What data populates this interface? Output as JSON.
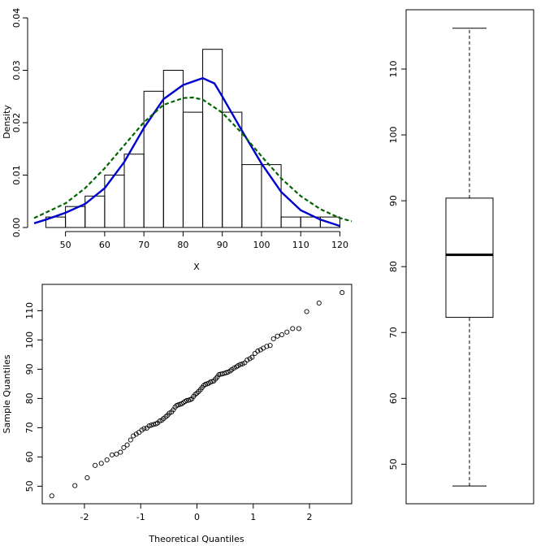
{
  "chart_data": [
    {
      "type": "histogram",
      "xlabel": "X",
      "ylabel": "Density",
      "xlim": [
        42,
        123
      ],
      "ylim": [
        0,
        0.04
      ],
      "xticks": [
        50,
        60,
        70,
        80,
        90,
        100,
        110,
        120
      ],
      "yticks": [
        0.0,
        0.01,
        0.02,
        0.03,
        0.04
      ],
      "xtick_labels": [
        "50",
        "60",
        "70",
        "80",
        "90",
        "100",
        "110",
        "120"
      ],
      "ytick_labels": [
        "0.00",
        "0.01",
        "0.02",
        "0.03",
        "0.04"
      ],
      "bins": [
        {
          "from": 45,
          "to": 50,
          "density": 0.002
        },
        {
          "from": 50,
          "to": 55,
          "density": 0.004
        },
        {
          "from": 55,
          "to": 60,
          "density": 0.006
        },
        {
          "from": 60,
          "to": 65,
          "density": 0.01
        },
        {
          "from": 65,
          "to": 70,
          "density": 0.014
        },
        {
          "from": 70,
          "to": 75,
          "density": 0.026
        },
        {
          "from": 75,
          "to": 80,
          "density": 0.03
        },
        {
          "from": 80,
          "to": 85,
          "density": 0.022
        },
        {
          "from": 85,
          "to": 90,
          "density": 0.034
        },
        {
          "from": 90,
          "to": 95,
          "density": 0.022
        },
        {
          "from": 95,
          "to": 100,
          "density": 0.012
        },
        {
          "from": 100,
          "to": 105,
          "density": 0.012
        },
        {
          "from": 105,
          "to": 110,
          "density": 0.002
        },
        {
          "from": 110,
          "to": 115,
          "density": 0.002
        },
        {
          "from": 115,
          "to": 120,
          "density": 0.002
        }
      ],
      "curves": [
        {
          "name": "kernel-density",
          "color": "#0000cc",
          "style": "solid",
          "points": [
            [
              42,
              0.0008
            ],
            [
              45,
              0.0015
            ],
            [
              50,
              0.0028
            ],
            [
              55,
              0.0045
            ],
            [
              60,
              0.0075
            ],
            [
              65,
              0.0125
            ],
            [
              70,
              0.019
            ],
            [
              75,
              0.0245
            ],
            [
              80,
              0.0272
            ],
            [
              85,
              0.0285
            ],
            [
              88,
              0.0275
            ],
            [
              90,
              0.025
            ],
            [
              95,
              0.0185
            ],
            [
              100,
              0.0122
            ],
            [
              105,
              0.0068
            ],
            [
              110,
              0.0033
            ],
            [
              115,
              0.0015
            ],
            [
              120,
              0.0003
            ]
          ]
        },
        {
          "name": "normal-density",
          "color": "#006400",
          "style": "dashed",
          "points": [
            [
              42,
              0.0018
            ],
            [
              50,
              0.0046
            ],
            [
              55,
              0.0075
            ],
            [
              60,
              0.0113
            ],
            [
              65,
              0.0157
            ],
            [
              70,
              0.0201
            ],
            [
              75,
              0.0234
            ],
            [
              80,
              0.0247
            ],
            [
              82.5,
              0.0248
            ],
            [
              85,
              0.0244
            ],
            [
              90,
              0.0219
            ],
            [
              95,
              0.018
            ],
            [
              100,
              0.0136
            ],
            [
              105,
              0.0094
            ],
            [
              110,
              0.006
            ],
            [
              115,
              0.0035
            ],
            [
              120,
              0.0018
            ],
            [
              123,
              0.0012
            ]
          ]
        }
      ]
    },
    {
      "type": "boxplot",
      "ylim": [
        44,
        119
      ],
      "yticks": [
        50,
        60,
        70,
        80,
        90,
        100,
        110
      ],
      "ytick_labels": [
        "50",
        "60",
        "70",
        "80",
        "90",
        "100",
        "110"
      ],
      "min": 46.7,
      "q1": 72.3,
      "median": 81.8,
      "q3": 90.4,
      "max": 116.2
    },
    {
      "type": "scatter",
      "xlabel": "Theoretical Quantiles",
      "ylabel": "Sample Quantiles",
      "xlim": [
        -2.75,
        2.75
      ],
      "ylim": [
        44,
        119
      ],
      "xticks": [
        -2,
        -1,
        0,
        1,
        2
      ],
      "yticks": [
        50,
        60,
        70,
        80,
        90,
        100,
        110
      ],
      "xtick_labels": [
        "-2",
        "-1",
        "0",
        "1",
        "2"
      ],
      "ytick_labels": [
        "50",
        "60",
        "70",
        "80",
        "90",
        "100",
        "110"
      ],
      "points": [
        [
          -2.58,
          46.7
        ],
        [
          -2.17,
          50.2
        ],
        [
          -1.95,
          52.9
        ],
        [
          -1.81,
          57.1
        ],
        [
          -1.7,
          57.8
        ],
        [
          -1.6,
          59.0
        ],
        [
          -1.51,
          60.7
        ],
        [
          -1.43,
          61.0
        ],
        [
          -1.36,
          61.6
        ],
        [
          -1.3,
          63.2
        ],
        [
          -1.24,
          64.1
        ],
        [
          -1.18,
          65.8
        ],
        [
          -1.13,
          67.2
        ],
        [
          -1.08,
          67.8
        ],
        [
          -1.03,
          68.4
        ],
        [
          -0.98,
          69.2
        ],
        [
          -0.94,
          69.7
        ],
        [
          -0.89,
          69.9
        ],
        [
          -0.85,
          70.6
        ],
        [
          -0.81,
          70.9
        ],
        [
          -0.77,
          71.1
        ],
        [
          -0.73,
          71.3
        ],
        [
          -0.7,
          71.6
        ],
        [
          -0.66,
          72.3
        ],
        [
          -0.62,
          72.6
        ],
        [
          -0.59,
          73.2
        ],
        [
          -0.55,
          73.8
        ],
        [
          -0.52,
          74.3
        ],
        [
          -0.49,
          75.0
        ],
        [
          -0.45,
          75.4
        ],
        [
          -0.42,
          76.1
        ],
        [
          -0.39,
          77.0
        ],
        [
          -0.36,
          77.6
        ],
        [
          -0.33,
          77.8
        ],
        [
          -0.3,
          78.0
        ],
        [
          -0.27,
          78.2
        ],
        [
          -0.24,
          78.6
        ],
        [
          -0.21,
          79.0
        ],
        [
          -0.18,
          79.3
        ],
        [
          -0.15,
          79.4
        ],
        [
          -0.12,
          79.6
        ],
        [
          -0.09,
          79.9
        ],
        [
          -0.06,
          80.7
        ],
        [
          -0.03,
          81.4
        ],
        [
          0.0,
          81.8
        ],
        [
          0.03,
          82.4
        ],
        [
          0.06,
          83.0
        ],
        [
          0.09,
          83.7
        ],
        [
          0.12,
          84.4
        ],
        [
          0.15,
          84.8
        ],
        [
          0.18,
          85.0
        ],
        [
          0.21,
          85.2
        ],
        [
          0.24,
          85.6
        ],
        [
          0.27,
          85.8
        ],
        [
          0.3,
          86.0
        ],
        [
          0.33,
          86.7
        ],
        [
          0.36,
          87.3
        ],
        [
          0.39,
          88.1
        ],
        [
          0.42,
          88.3
        ],
        [
          0.45,
          88.4
        ],
        [
          0.49,
          88.6
        ],
        [
          0.52,
          88.8
        ],
        [
          0.55,
          89.0
        ],
        [
          0.59,
          89.4
        ],
        [
          0.62,
          89.9
        ],
        [
          0.66,
          90.4
        ],
        [
          0.7,
          90.8
        ],
        [
          0.73,
          91.2
        ],
        [
          0.77,
          91.6
        ],
        [
          0.81,
          91.8
        ],
        [
          0.85,
          92.2
        ],
        [
          0.89,
          93.1
        ],
        [
          0.94,
          93.6
        ],
        [
          0.98,
          94.1
        ],
        [
          1.03,
          95.4
        ],
        [
          1.08,
          96.2
        ],
        [
          1.13,
          96.6
        ],
        [
          1.18,
          97.2
        ],
        [
          1.24,
          97.8
        ],
        [
          1.3,
          98.1
        ],
        [
          1.36,
          100.4
        ],
        [
          1.43,
          101.3
        ],
        [
          1.51,
          101.8
        ],
        [
          1.6,
          102.7
        ],
        [
          1.7,
          103.9
        ],
        [
          1.81,
          103.9
        ],
        [
          1.95,
          109.7
        ],
        [
          2.17,
          112.6
        ],
        [
          2.58,
          116.2
        ]
      ]
    }
  ]
}
